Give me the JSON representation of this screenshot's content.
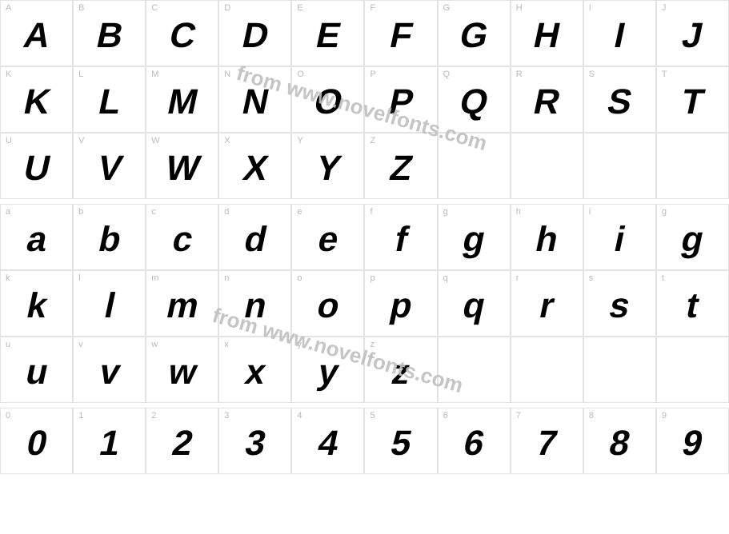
{
  "colors": {
    "border": "#e3e3e3",
    "key_label": "#bababa",
    "glyph": "#000000",
    "watermark": "#bfbfbf",
    "background": "#ffffff"
  },
  "typography": {
    "glyph_fontsize": 44,
    "glyph_weight": 900,
    "glyph_style": "italic",
    "key_label_fontsize": 11
  },
  "watermark_text": "from www.novelfonts.com",
  "rows": [
    [
      {
        "key": "A",
        "glyph": "A"
      },
      {
        "key": "B",
        "glyph": "B"
      },
      {
        "key": "C",
        "glyph": "C"
      },
      {
        "key": "D",
        "glyph": "D"
      },
      {
        "key": "E",
        "glyph": "E"
      },
      {
        "key": "F",
        "glyph": "F"
      },
      {
        "key": "G",
        "glyph": "G"
      },
      {
        "key": "H",
        "glyph": "H"
      },
      {
        "key": "I",
        "glyph": "I"
      },
      {
        "key": "J",
        "glyph": "J"
      }
    ],
    [
      {
        "key": "K",
        "glyph": "K"
      },
      {
        "key": "L",
        "glyph": "L"
      },
      {
        "key": "M",
        "glyph": "M"
      },
      {
        "key": "N",
        "glyph": "N"
      },
      {
        "key": "O",
        "glyph": "O"
      },
      {
        "key": "P",
        "glyph": "P"
      },
      {
        "key": "Q",
        "glyph": "Q"
      },
      {
        "key": "R",
        "glyph": "R"
      },
      {
        "key": "S",
        "glyph": "S"
      },
      {
        "key": "T",
        "glyph": "T"
      }
    ],
    [
      {
        "key": "U",
        "glyph": "U"
      },
      {
        "key": "V",
        "glyph": "V"
      },
      {
        "key": "W",
        "glyph": "W"
      },
      {
        "key": "X",
        "glyph": "X"
      },
      {
        "key": "Y",
        "glyph": "Y"
      },
      {
        "key": "Z",
        "glyph": "Z"
      },
      {
        "key": "",
        "glyph": ""
      },
      {
        "key": "",
        "glyph": ""
      },
      {
        "key": "",
        "glyph": ""
      },
      {
        "key": "",
        "glyph": ""
      }
    ],
    [
      {
        "key": "a",
        "glyph": "a"
      },
      {
        "key": "b",
        "glyph": "b"
      },
      {
        "key": "c",
        "glyph": "c"
      },
      {
        "key": "d",
        "glyph": "d"
      },
      {
        "key": "e",
        "glyph": "e"
      },
      {
        "key": "f",
        "glyph": "f"
      },
      {
        "key": "g",
        "glyph": "g"
      },
      {
        "key": "h",
        "glyph": "h"
      },
      {
        "key": "i",
        "glyph": "i"
      },
      {
        "key": "g",
        "glyph": "g"
      }
    ],
    [
      {
        "key": "k",
        "glyph": "k"
      },
      {
        "key": "l",
        "glyph": "l"
      },
      {
        "key": "m",
        "glyph": "m"
      },
      {
        "key": "n",
        "glyph": "n"
      },
      {
        "key": "o",
        "glyph": "o"
      },
      {
        "key": "p",
        "glyph": "p"
      },
      {
        "key": "q",
        "glyph": "q"
      },
      {
        "key": "r",
        "glyph": "r"
      },
      {
        "key": "s",
        "glyph": "s"
      },
      {
        "key": "t",
        "glyph": "t"
      }
    ],
    [
      {
        "key": "u",
        "glyph": "u"
      },
      {
        "key": "v",
        "glyph": "v"
      },
      {
        "key": "w",
        "glyph": "w"
      },
      {
        "key": "x",
        "glyph": "x"
      },
      {
        "key": "y",
        "glyph": "y"
      },
      {
        "key": "z",
        "glyph": "z"
      },
      {
        "key": "",
        "glyph": ""
      },
      {
        "key": "",
        "glyph": ""
      },
      {
        "key": "",
        "glyph": ""
      },
      {
        "key": "",
        "glyph": ""
      }
    ],
    [
      {
        "key": "0",
        "glyph": "0"
      },
      {
        "key": "1",
        "glyph": "1"
      },
      {
        "key": "2",
        "glyph": "2"
      },
      {
        "key": "3",
        "glyph": "3"
      },
      {
        "key": "4",
        "glyph": "4"
      },
      {
        "key": "5",
        "glyph": "5"
      },
      {
        "key": "6",
        "glyph": "6"
      },
      {
        "key": "7",
        "glyph": "7"
      },
      {
        "key": "8",
        "glyph": "8"
      },
      {
        "key": "9",
        "glyph": "9"
      }
    ]
  ],
  "gap_after_rows": [
    2,
    5
  ]
}
